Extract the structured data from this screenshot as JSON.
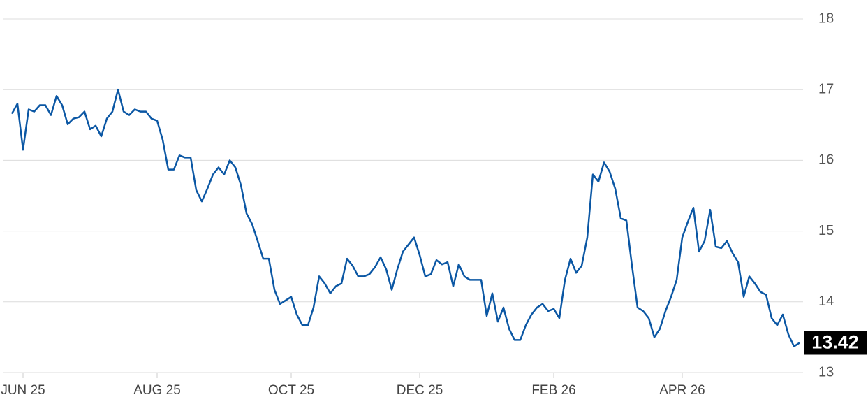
{
  "chart_data": {
    "type": "line",
    "categories": [
      null,
      null,
      "JUN 25",
      null,
      null,
      null,
      null,
      null,
      null,
      null,
      null,
      null,
      null,
      null,
      null,
      null,
      null,
      null,
      null,
      null,
      null,
      null,
      null,
      null,
      null,
      null,
      "AUG 25",
      null,
      null,
      null,
      null,
      null,
      null,
      null,
      null,
      null,
      null,
      null,
      null,
      null,
      null,
      null,
      null,
      null,
      null,
      null,
      null,
      null,
      null,
      null,
      "OCT 25",
      null,
      null,
      null,
      null,
      null,
      null,
      null,
      null,
      null,
      null,
      null,
      null,
      null,
      null,
      null,
      null,
      null,
      null,
      null,
      null,
      null,
      null,
      "DEC 25",
      null,
      null,
      null,
      null,
      null,
      null,
      null,
      null,
      null,
      null,
      null,
      null,
      null,
      null,
      null,
      null,
      null,
      null,
      null,
      null,
      null,
      null,
      null,
      "FEB 26",
      null,
      null,
      null,
      null,
      null,
      null,
      null,
      null,
      null,
      null,
      null,
      null,
      null,
      null,
      null,
      null,
      null,
      null,
      null,
      null,
      null,
      null,
      "APR 26",
      null,
      null,
      null,
      null,
      null,
      null,
      null,
      null,
      null,
      null,
      null,
      null,
      null,
      null,
      null,
      null,
      null,
      null,
      null,
      null,
      null
    ],
    "values": [
      16.66,
      16.8,
      16.15,
      16.72,
      16.69,
      16.78,
      16.78,
      16.64,
      16.91,
      16.78,
      16.51,
      16.59,
      16.61,
      16.69,
      16.44,
      16.49,
      16.34,
      16.59,
      16.69,
      17.0,
      16.69,
      16.64,
      16.72,
      16.69,
      16.69,
      16.59,
      16.56,
      16.29,
      15.87,
      15.87,
      16.07,
      16.04,
      16.04,
      15.58,
      15.42,
      15.6,
      15.8,
      15.9,
      15.8,
      16.0,
      15.9,
      15.65,
      15.25,
      15.1,
      14.86,
      14.61,
      14.61,
      14.17,
      13.97,
      14.02,
      14.07,
      13.82,
      13.67,
      13.67,
      13.92,
      14.36,
      14.26,
      14.12,
      14.22,
      14.26,
      14.61,
      14.51,
      14.36,
      14.36,
      14.39,
      14.49,
      14.63,
      14.46,
      14.17,
      14.46,
      14.71,
      14.81,
      14.91,
      14.66,
      14.36,
      14.39,
      14.59,
      14.53,
      14.56,
      14.22,
      14.53,
      14.36,
      14.31,
      14.31,
      14.31,
      13.8,
      14.12,
      13.72,
      13.92,
      13.62,
      13.46,
      13.46,
      13.67,
      13.82,
      13.92,
      13.97,
      13.87,
      13.9,
      13.77,
      14.31,
      14.61,
      14.41,
      14.51,
      14.91,
      15.8,
      15.7,
      15.97,
      15.84,
      15.6,
      15.18,
      15.15,
      14.51,
      13.92,
      13.87,
      13.77,
      13.5,
      13.62,
      13.87,
      14.07,
      14.31,
      14.91,
      15.13,
      15.33,
      14.71,
      14.86,
      15.3,
      14.78,
      14.76,
      14.86,
      14.69,
      14.56,
      14.07,
      14.36,
      14.26,
      14.14,
      14.1,
      13.77,
      13.67,
      13.82,
      13.54,
      13.37,
      13.42
    ],
    "color": "#0b57a4",
    "ylim": [
      13,
      18
    ],
    "yticks": [
      13,
      14,
      15,
      16,
      17,
      18
    ],
    "grid": true
  }
}
